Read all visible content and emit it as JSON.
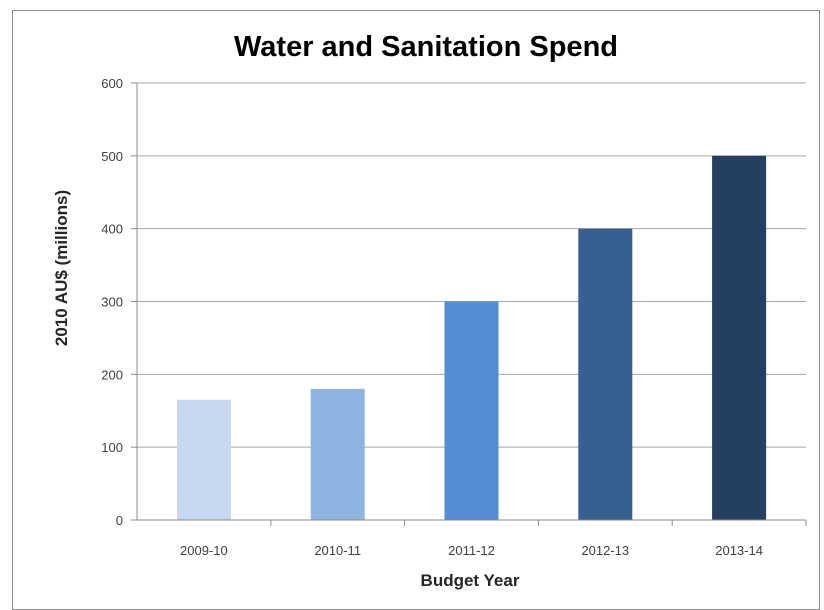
{
  "chart_data": {
    "type": "bar",
    "title": "Water and Sanitation Spend",
    "xlabel": "Budget Year",
    "ylabel": "2010 AU$ (millions)",
    "categories": [
      "2009-10",
      "2010-11",
      "2011-12",
      "2012-13",
      "2013-14"
    ],
    "values": [
      165,
      180,
      300,
      400,
      500
    ],
    "ylim": [
      0,
      600
    ],
    "yticks": [
      "0",
      "100",
      "200",
      "300",
      "400",
      "500",
      "600"
    ],
    "grid": true,
    "legend": "none",
    "colors": [
      "#c6d9f1",
      "#8db4e2",
      "#538ed5",
      "#366092",
      "#243f60"
    ]
  }
}
